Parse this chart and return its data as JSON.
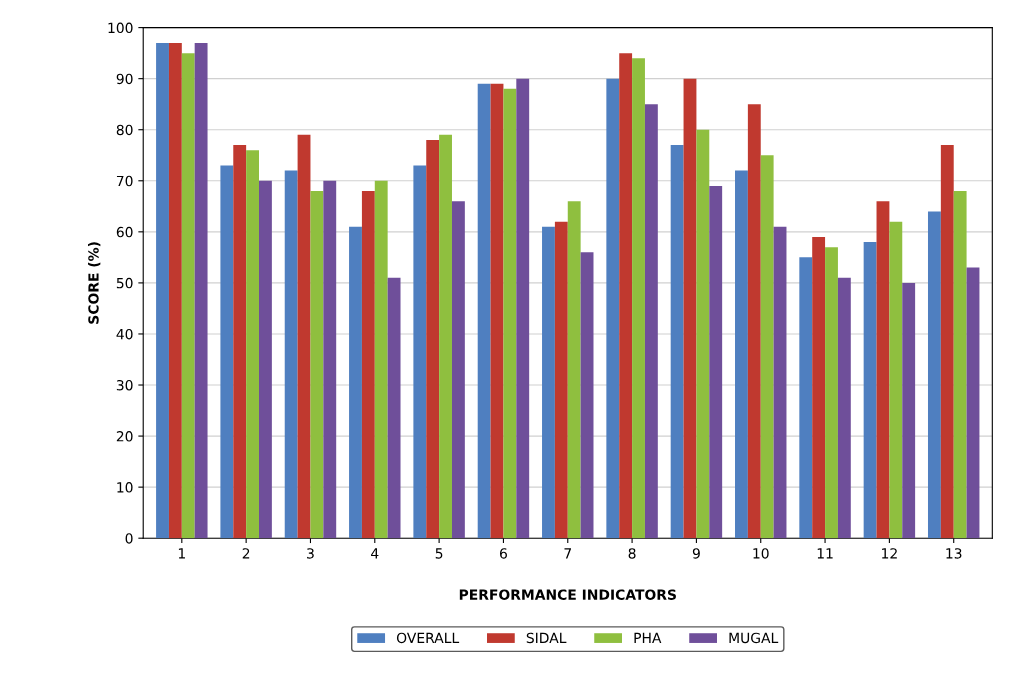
{
  "chart_data": {
    "type": "bar",
    "xlabel": "PERFORMANCE INDICATORS",
    "ylabel": "SCORE (%)",
    "categories": [
      "1",
      "2",
      "3",
      "4",
      "5",
      "6",
      "7",
      "8",
      "9",
      "10",
      "11",
      "12",
      "13"
    ],
    "series": [
      {
        "name": "OVERALL",
        "color": "#4f7fc0",
        "values": [
          97,
          73,
          72,
          61,
          73,
          89,
          61,
          90,
          77,
          72,
          55,
          58,
          64
        ]
      },
      {
        "name": "SIDAL",
        "color": "#c0392f",
        "values": [
          97,
          77,
          79,
          68,
          78,
          89,
          62,
          95,
          90,
          85,
          59,
          66,
          77
        ]
      },
      {
        "name": "PHA",
        "color": "#8fbf3f",
        "values": [
          95,
          76,
          68,
          70,
          79,
          88,
          66,
          94,
          80,
          75,
          57,
          62,
          68
        ]
      },
      {
        "name": "MUGAL",
        "color": "#6f4f9a",
        "values": [
          97,
          70,
          70,
          51,
          66,
          90,
          56,
          85,
          69,
          61,
          51,
          50,
          53
        ]
      }
    ],
    "ylim": [
      0,
      100
    ],
    "yticks": [
      0,
      10,
      20,
      30,
      40,
      50,
      60,
      70,
      80,
      90,
      100
    ],
    "grid": "y",
    "legend": "bottom"
  }
}
